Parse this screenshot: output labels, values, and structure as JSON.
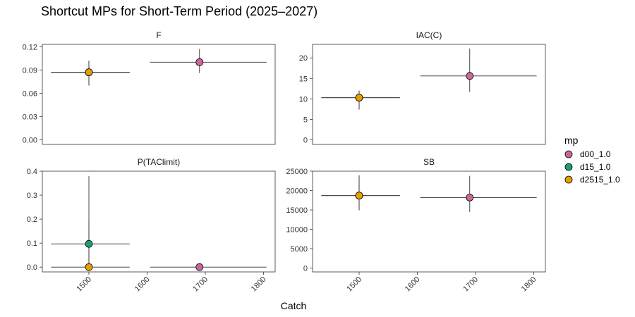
{
  "chart_data": {
    "type": "scatter",
    "title": "Shortcut MPs for Short-Term Period (2025–2027)",
    "xlabel": "Catch",
    "xlim": [
      1420,
      1820
    ],
    "xticks": [
      1500,
      1600,
      1700,
      1800
    ],
    "legend": {
      "title": "mp",
      "placement": "right",
      "entries": [
        {
          "name": "d00_1.0",
          "color": "#CC6699"
        },
        {
          "name": "d15_1.0",
          "color": "#1B9E77"
        },
        {
          "name": "d2515_1.0",
          "color": "#E69F00"
        }
      ]
    },
    "panels": [
      {
        "label": "F",
        "ylim": [
          -0.006,
          0.123
        ],
        "yticks": [
          0.0,
          0.03,
          0.06,
          0.09,
          0.12
        ],
        "ytick_labels": [
          "0.00",
          "0.03",
          "0.06",
          "0.09",
          "0.12"
        ],
        "points": [
          {
            "mp": "d00_1.0",
            "x": 1690,
            "y": 0.1,
            "xmin": 1605,
            "xmax": 1805,
            "ymin": 0.086,
            "ymax": 0.117
          },
          {
            "mp": "d15_1.0",
            "x": 1500,
            "y": 0.087,
            "xmin": 1435,
            "xmax": 1570,
            "ymin": 0.07,
            "ymax": 0.102
          },
          {
            "mp": "d2515_1.0",
            "x": 1500,
            "y": 0.087,
            "xmin": 1435,
            "xmax": 1570,
            "ymin": 0.07,
            "ymax": 0.102
          }
        ]
      },
      {
        "label": "IAC(C)",
        "ylim": [
          -1.1,
          23.3
        ],
        "yticks": [
          0,
          5,
          10,
          15,
          20
        ],
        "ytick_labels": [
          "0",
          "5",
          "10",
          "15",
          "20"
        ],
        "points": [
          {
            "mp": "d00_1.0",
            "x": 1690,
            "y": 15.6,
            "xmin": 1605,
            "xmax": 1805,
            "ymin": 11.7,
            "ymax": 22.3
          },
          {
            "mp": "d15_1.0",
            "x": 1500,
            "y": 10.3,
            "xmin": 1435,
            "xmax": 1570,
            "ymin": 7.4,
            "ymax": 12.0
          },
          {
            "mp": "d2515_1.0",
            "x": 1500,
            "y": 10.3,
            "xmin": 1435,
            "xmax": 1570,
            "ymin": 7.4,
            "ymax": 12.0
          }
        ]
      },
      {
        "label": "P(TAClimit)",
        "ylim": [
          -0.02,
          0.4
        ],
        "yticks": [
          0.0,
          0.1,
          0.2,
          0.3,
          0.4
        ],
        "ytick_labels": [
          "0.0",
          "0.1",
          "0.2",
          "0.3",
          "0.4"
        ],
        "points": [
          {
            "mp": "d00_1.0",
            "x": 1690,
            "y": 0.0,
            "xmin": 1605,
            "xmax": 1805,
            "ymin": 0.0,
            "ymax": 0.0
          },
          {
            "mp": "d15_1.0",
            "x": 1500,
            "y": 0.097,
            "xmin": 1435,
            "xmax": 1570,
            "ymin": 0.0,
            "ymax": 0.38
          },
          {
            "mp": "d2515_1.0",
            "x": 1500,
            "y": 0.0,
            "xmin": 1435,
            "xmax": 1570,
            "ymin": 0.0,
            "ymax": 0.195
          }
        ]
      },
      {
        "label": "SB",
        "ylim": [
          -1000,
          25000
        ],
        "yticks": [
          0,
          5000,
          10000,
          15000,
          20000,
          25000
        ],
        "ytick_labels": [
          "0",
          "5000",
          "10000",
          "15000",
          "20000",
          "25000"
        ],
        "points": [
          {
            "mp": "d00_1.0",
            "x": 1690,
            "y": 18200,
            "xmin": 1605,
            "xmax": 1805,
            "ymin": 14500,
            "ymax": 23800
          },
          {
            "mp": "d15_1.0",
            "x": 1500,
            "y": 18700,
            "xmin": 1435,
            "xmax": 1570,
            "ymin": 14900,
            "ymax": 23900
          },
          {
            "mp": "d2515_1.0",
            "x": 1500,
            "y": 18700,
            "xmin": 1435,
            "xmax": 1570,
            "ymin": 14900,
            "ymax": 23900
          }
        ]
      }
    ]
  }
}
